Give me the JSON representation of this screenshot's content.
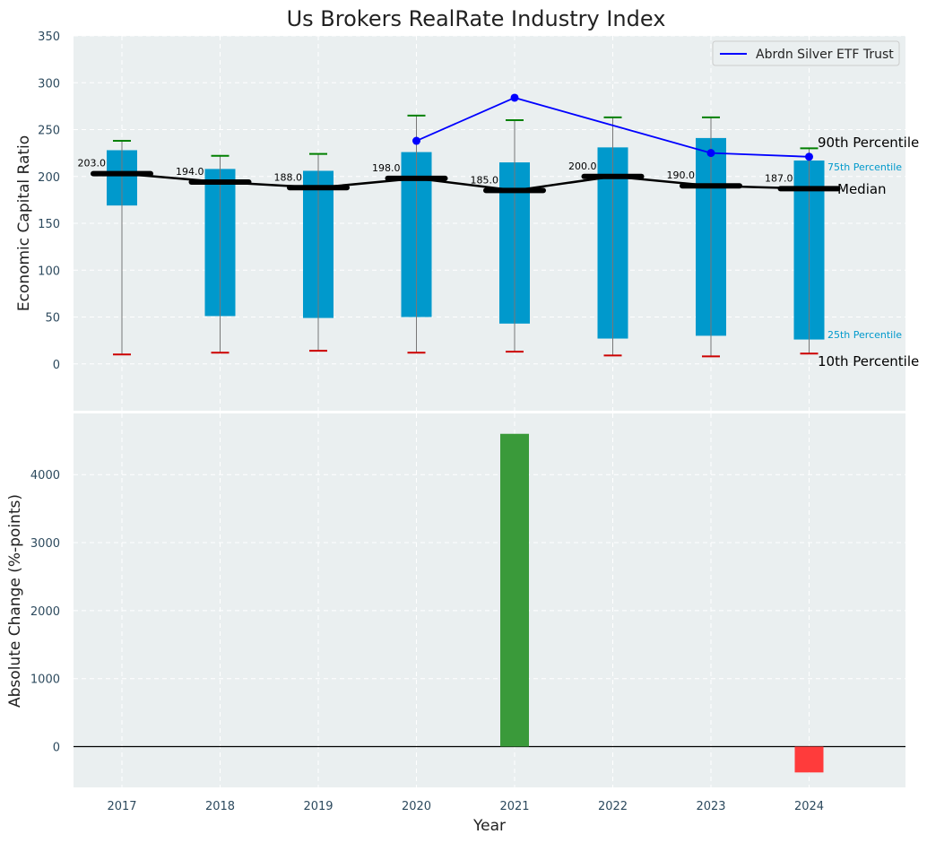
{
  "chart_data": [
    {
      "type": "box-range",
      "title": "Us Brokers RealRate Industry Index",
      "xlabel": "",
      "ylabel": "Economic Capital Ratio",
      "ylim": [
        -50,
        350
      ],
      "yticks": [
        0,
        50,
        100,
        150,
        200,
        250,
        300,
        350
      ],
      "categories": [
        "2017",
        "2018",
        "2019",
        "2020",
        "2021",
        "2022",
        "2023",
        "2024"
      ],
      "p10": [
        10,
        12,
        14,
        12,
        13,
        9,
        8,
        11
      ],
      "p25": [
        169,
        51,
        49,
        50,
        43,
        27,
        30,
        26
      ],
      "median": [
        203,
        194,
        188,
        198,
        185,
        200,
        190,
        187
      ],
      "median_labels": [
        "203.0",
        "194.0",
        "188.0",
        "198.0",
        "185.0",
        "200.0",
        "190.0",
        "187.0"
      ],
      "p75": [
        228,
        208,
        206,
        226,
        215,
        231,
        241,
        217
      ],
      "p90": [
        238,
        222,
        224,
        265,
        260,
        263,
        263,
        230
      ],
      "series": [
        {
          "name": "Abrdn Silver ETF Trust",
          "x": [
            "2020",
            "2021",
            "2023",
            "2024"
          ],
          "values": [
            238,
            284,
            225,
            221
          ],
          "color": "#0000ff"
        }
      ],
      "annotations": {
        "p90": "90th Percentile",
        "p75": "75th Percentile",
        "median": "Median",
        "p25": "25th Percentile",
        "p10": "10th Percentile"
      },
      "legend": "top-right",
      "grid": true,
      "colors": {
        "box": "#0099cc",
        "median": "#000000",
        "p90_cap": "#008000",
        "p10_cap": "#cc0000",
        "background": "#eaeff0",
        "grid": "#ffffff"
      }
    },
    {
      "type": "bar",
      "title": "",
      "xlabel": "Year",
      "ylabel": "Absolute Change (%-points)",
      "ylim": [
        -600,
        4900
      ],
      "yticks": [
        0,
        1000,
        2000,
        3000,
        4000
      ],
      "categories": [
        "2017",
        "2018",
        "2019",
        "2020",
        "2021",
        "2022",
        "2023",
        "2024"
      ],
      "values": [
        0,
        0,
        0,
        0,
        4600,
        0,
        0,
        -380
      ],
      "grid": true,
      "colors": {
        "positive": "#3a9a3a",
        "negative": "#ff3b3b",
        "zero_line": "#000000"
      }
    }
  ]
}
